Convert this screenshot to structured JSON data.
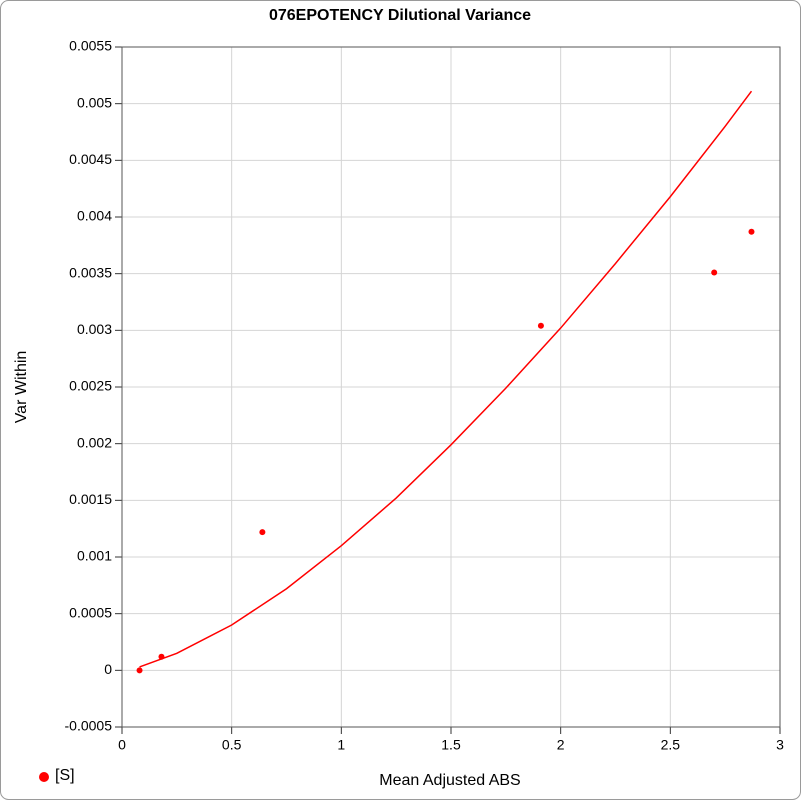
{
  "chart_data": {
    "type": "scatter",
    "title": "076EPOTENCY Dilutional Variance",
    "x_label": "Mean Adjusted ABS",
    "y_label": "Var Within",
    "xlim": [
      0,
      3
    ],
    "xticks": [
      0,
      0.5,
      1,
      1.5,
      2,
      2.5,
      3
    ],
    "ylim": [
      -0.0005,
      0.0055
    ],
    "yticks": [
      -0.0005,
      0,
      0.0005,
      0.001,
      0.0015,
      0.002,
      0.0025,
      0.003,
      0.0035,
      0.004,
      0.0045,
      0.005,
      0.0055
    ],
    "grid": true,
    "series": [
      {
        "name": "[S]",
        "color": "#ff0000",
        "x": [
          0.08,
          0.18,
          0.64,
          1.91,
          2.7,
          2.87
        ],
        "values": [
          0.0,
          0.00012,
          0.00122,
          0.00304,
          0.00351,
          0.00387
        ]
      }
    ],
    "fit_line": {
      "color": "#ff0000",
      "x": [
        0.08,
        0.25,
        0.5,
        0.75,
        1,
        1.25,
        1.5,
        1.75,
        2,
        2.25,
        2.5,
        2.75,
        2.87
      ],
      "values": [
        3e-05,
        0.00015,
        0.0004,
        0.00072,
        0.0011,
        0.00152,
        0.00199,
        0.00249,
        0.00302,
        0.00359,
        0.00418,
        0.0048,
        0.00511
      ]
    }
  }
}
